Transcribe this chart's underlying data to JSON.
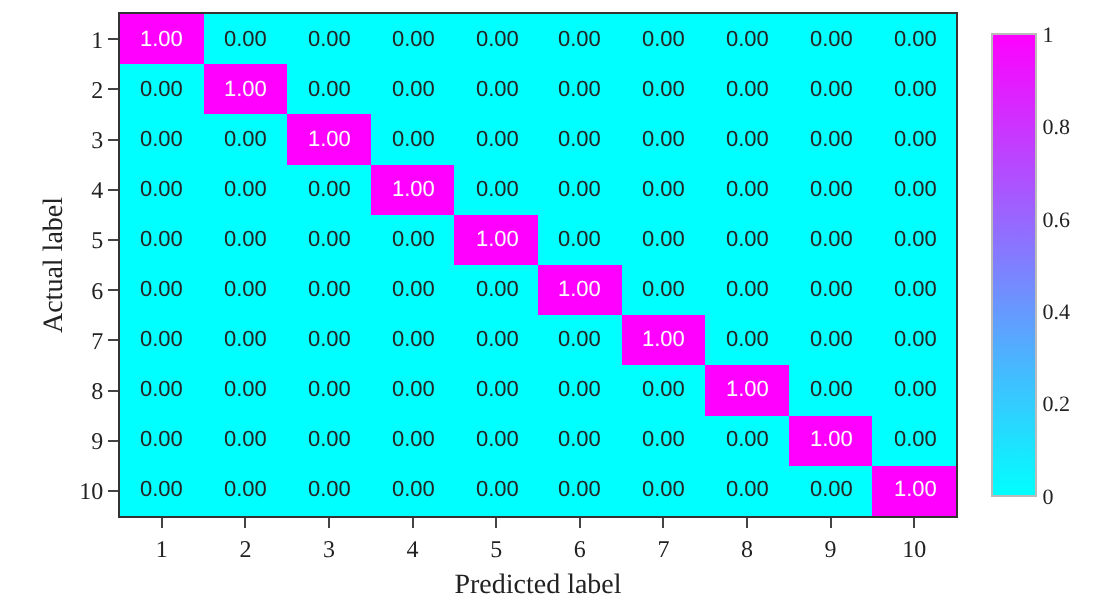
{
  "chart_data": {
    "type": "heatmap",
    "xlabel": "Predicted label",
    "ylabel": "Actual label",
    "categories": [
      "1",
      "2",
      "3",
      "4",
      "5",
      "6",
      "7",
      "8",
      "9",
      "10"
    ],
    "y_categories": [
      "1",
      "2",
      "3",
      "4",
      "5",
      "6",
      "7",
      "8",
      "9",
      "10"
    ],
    "cells": [
      [
        1,
        0,
        0,
        0,
        0,
        0,
        0,
        0,
        0,
        0
      ],
      [
        0,
        1,
        0,
        0,
        0,
        0,
        0,
        0,
        0,
        0
      ],
      [
        0,
        0,
        1,
        0,
        0,
        0,
        0,
        0,
        0,
        0
      ],
      [
        0,
        0,
        0,
        1,
        0,
        0,
        0,
        0,
        0,
        0
      ],
      [
        0,
        0,
        0,
        0,
        1,
        0,
        0,
        0,
        0,
        0
      ],
      [
        0,
        0,
        0,
        0,
        0,
        1,
        0,
        0,
        0,
        0
      ],
      [
        0,
        0,
        0,
        0,
        0,
        0,
        1,
        0,
        0,
        0
      ],
      [
        0,
        0,
        0,
        0,
        0,
        0,
        0,
        1,
        0,
        0
      ],
      [
        0,
        0,
        0,
        0,
        0,
        0,
        0,
        0,
        1,
        0
      ],
      [
        0,
        0,
        0,
        0,
        0,
        0,
        0,
        0,
        0,
        1
      ]
    ],
    "cell_labels": [
      [
        "1.00",
        "0.00",
        "0.00",
        "0.00",
        "0.00",
        "0.00",
        "0.00",
        "0.00",
        "0.00",
        "0.00"
      ],
      [
        "0.00",
        "1.00",
        "0.00",
        "0.00",
        "0.00",
        "0.00",
        "0.00",
        "0.00",
        "0.00",
        "0.00"
      ],
      [
        "0.00",
        "0.00",
        "1.00",
        "0.00",
        "0.00",
        "0.00",
        "0.00",
        "0.00",
        "0.00",
        "0.00"
      ],
      [
        "0.00",
        "0.00",
        "0.00",
        "1.00",
        "0.00",
        "0.00",
        "0.00",
        "0.00",
        "0.00",
        "0.00"
      ],
      [
        "0.00",
        "0.00",
        "0.00",
        "0.00",
        "1.00",
        "0.00",
        "0.00",
        "0.00",
        "0.00",
        "0.00"
      ],
      [
        "0.00",
        "0.00",
        "0.00",
        "0.00",
        "0.00",
        "1.00",
        "0.00",
        "0.00",
        "0.00",
        "0.00"
      ],
      [
        "0.00",
        "0.00",
        "0.00",
        "0.00",
        "0.00",
        "0.00",
        "1.00",
        "0.00",
        "0.00",
        "0.00"
      ],
      [
        "0.00",
        "0.00",
        "0.00",
        "0.00",
        "0.00",
        "0.00",
        "0.00",
        "1.00",
        "0.00",
        "0.00"
      ],
      [
        "0.00",
        "0.00",
        "0.00",
        "0.00",
        "0.00",
        "0.00",
        "0.00",
        "0.00",
        "1.00",
        "0.00"
      ],
      [
        "0.00",
        "0.00",
        "0.00",
        "0.00",
        "0.00",
        "0.00",
        "0.00",
        "0.00",
        "0.00",
        "1.00"
      ]
    ],
    "clim": [
      0,
      1
    ],
    "cticks": [
      0,
      0.2,
      0.4,
      0.6,
      0.8,
      1
    ]
  }
}
